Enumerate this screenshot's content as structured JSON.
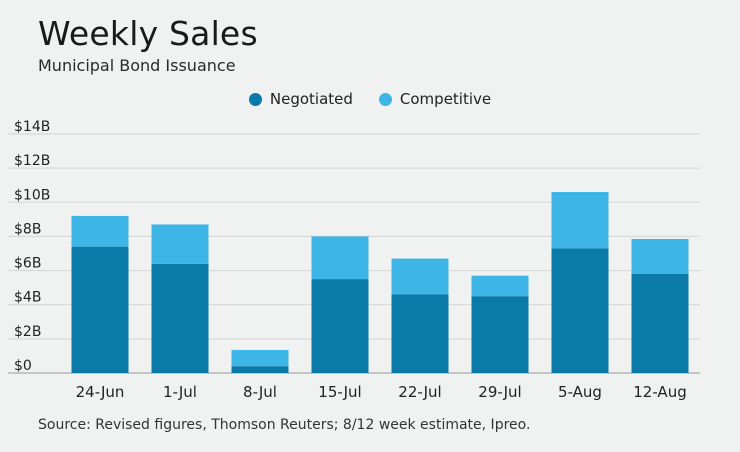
{
  "chart_data": {
    "type": "bar",
    "stacked": true,
    "title": "Weekly Sales",
    "subtitle": "Municipal Bond Issuance",
    "categories": [
      "24-Jun",
      "1-Jul",
      "8-Jul",
      "15-Jul",
      "22-Jul",
      "29-Jul",
      "5-Aug",
      "12-Aug"
    ],
    "series": [
      {
        "name": "Negotiated",
        "color": "#0a7aa8",
        "values": [
          7.4,
          6.4,
          0.4,
          5.5,
          4.6,
          4.5,
          7.3,
          5.8
        ]
      },
      {
        "name": "Competitive",
        "color": "#3db5e6",
        "values": [
          1.8,
          2.3,
          0.95,
          2.5,
          2.1,
          1.2,
          3.3,
          2.05
        ]
      }
    ],
    "yticks": [
      "$0",
      "$2B",
      "$4B",
      "$6B",
      "$8B",
      "$10B",
      "$12B",
      "$14B"
    ],
    "ylim": [
      0,
      14
    ],
    "grid": true,
    "legend_position": "top-center",
    "source": "Source: Revised figures, Thomson Reuters; 8/12 week estimate, Ipreo."
  }
}
